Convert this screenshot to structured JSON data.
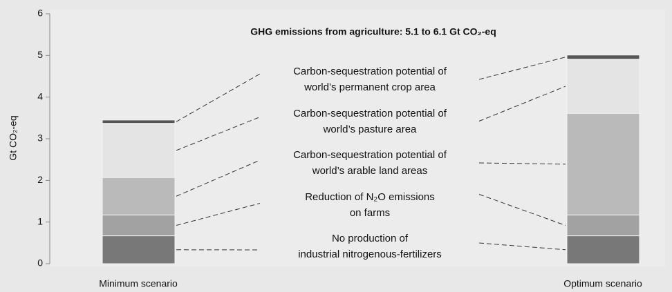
{
  "chart_data": {
    "type": "stacked_bar",
    "title": "GHG emissions from agriculture: 5.1 to 6.1 Gt CO₂-eq",
    "y_label": "Gt CO₂-eq",
    "categories": [
      "Minimum scenario",
      "Optimum scenario"
    ],
    "series": [
      {
        "name": "No production of\nindustrial nitrogenous-fertilizers",
        "color": "#787878",
        "values": [
          0.67,
          0.67
        ]
      },
      {
        "name": "Reduction of N₂O emissions\non farms",
        "color": "#a2a2a2",
        "values": [
          0.5,
          0.5
        ]
      },
      {
        "name": "Carbon-sequestration potential of\nworld’s arable land areas",
        "color": "#bababa",
        "values": [
          0.9,
          2.44
        ]
      },
      {
        "name": "Carbon-sequestration potential of\nworld’s pasture area",
        "color": "#e4e4e4",
        "values": [
          1.3,
          1.3
        ]
      },
      {
        "name": "Carbon-sequestration potential of\nworld’s permanent crop area",
        "color": "#555555",
        "values": [
          0.08,
          0.1
        ]
      }
    ],
    "ylim": [
      0,
      6
    ],
    "yticks": [
      0,
      1,
      2,
      3,
      4,
      5,
      6
    ]
  }
}
